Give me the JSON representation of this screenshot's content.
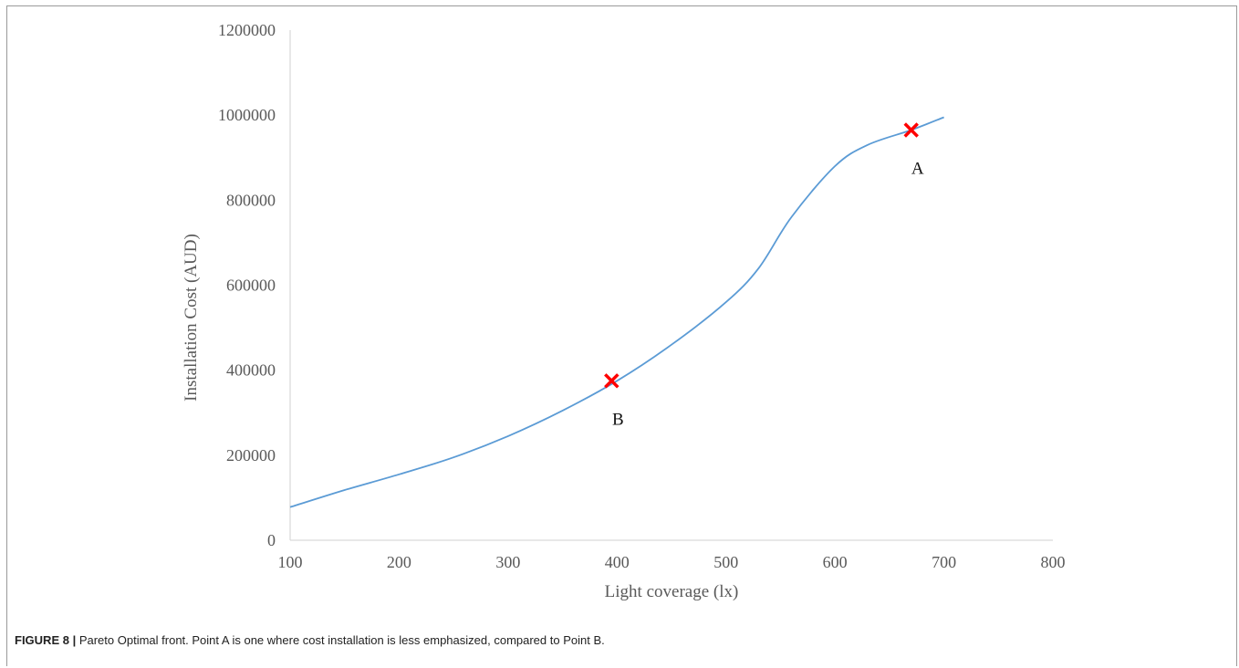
{
  "caption": {
    "figure_number": "FIGURE 8 |",
    "text": "Pareto Optimal front. Point A is one where cost installation is less emphasized, compared to Point B."
  },
  "chart_data": {
    "type": "line",
    "title": "",
    "xlabel": "Light coverage (lx)",
    "ylabel": "Installation Cost (AUD)",
    "xlim": [
      100,
      800
    ],
    "ylim": [
      0,
      1200000
    ],
    "x_ticks": [
      100,
      200,
      300,
      400,
      500,
      600,
      700,
      800
    ],
    "y_ticks": [
      0,
      200000,
      400000,
      600000,
      800000,
      1000000,
      1200000
    ],
    "grid": false,
    "legend": "none",
    "series": [
      {
        "color": "#5b9bd5",
        "points": [
          [
            100,
            78000
          ],
          [
            150,
            118000
          ],
          [
            200,
            155000
          ],
          [
            250,
            195000
          ],
          [
            300,
            245000
          ],
          [
            350,
            305000
          ],
          [
            400,
            375000
          ],
          [
            450,
            460000
          ],
          [
            500,
            560000
          ],
          [
            530,
            640000
          ],
          [
            560,
            760000
          ],
          [
            600,
            880000
          ],
          [
            630,
            930000
          ],
          [
            670,
            965000
          ],
          [
            700,
            995000
          ]
        ]
      }
    ],
    "annotations": [
      {
        "label": "A",
        "x": 670,
        "y": 965000,
        "marker": "x",
        "color": "#ff0000"
      },
      {
        "label": "B",
        "x": 395,
        "y": 375000,
        "marker": "x",
        "color": "#ff0000"
      }
    ]
  }
}
